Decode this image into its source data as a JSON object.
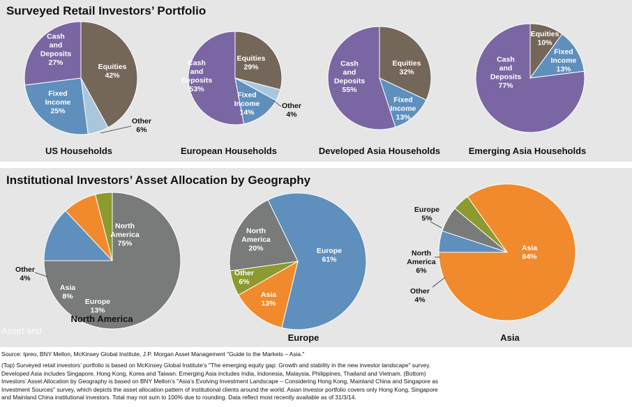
{
  "top_title": "Surveyed Retail Investors’ Portfolio",
  "bottom_title": "Institutional Investors’ Asset Allocation by Geography",
  "watermark": "Asset and",
  "colors": {
    "equities": "#75665a",
    "cash": "#7b66a4",
    "fixed": "#5e8fbd",
    "other_light": "#a9c6dc",
    "other_green": "#8c9a2f",
    "asia": "#f08a2c",
    "europe": "#5e8fbd",
    "north_america": "#797a7a",
    "panel": "#e6e6e6"
  },
  "chart_data": [
    {
      "type": "pie",
      "title": "US Households",
      "slices": [
        {
          "name": "Equities",
          "label": [
            "Equities",
            "42%"
          ],
          "value": 42
        },
        {
          "name": "Other",
          "label": [
            "Other",
            "6%"
          ],
          "value": 6
        },
        {
          "name": "Fixed Income",
          "label": [
            "Fixed",
            "Income",
            "25%"
          ],
          "value": 25
        },
        {
          "name": "Cash and Deposits",
          "label": [
            "Cash",
            "and",
            "Deposits",
            "27%"
          ],
          "value": 27
        }
      ]
    },
    {
      "type": "pie",
      "title": "European Households",
      "slices": [
        {
          "name": "Equities",
          "label": [
            "Equities",
            "29%"
          ],
          "value": 29
        },
        {
          "name": "Other",
          "label": [
            "Other",
            "4%"
          ],
          "value": 4
        },
        {
          "name": "Fixed Income",
          "label": [
            "Fixed",
            "Income",
            "14%"
          ],
          "value": 14
        },
        {
          "name": "Cash and Deposits",
          "label": [
            "Cash",
            "and",
            "Deposits",
            "53%"
          ],
          "value": 53
        }
      ]
    },
    {
      "type": "pie",
      "title": "Developed Asia Households",
      "slices": [
        {
          "name": "Equities",
          "label": [
            "Equities",
            "32%"
          ],
          "value": 32
        },
        {
          "name": "Fixed Income",
          "label": [
            "Fixed",
            "Income",
            "13%"
          ],
          "value": 13
        },
        {
          "name": "Cash and Deposits",
          "label": [
            "Cash",
            "and",
            "Deposits",
            "55%"
          ],
          "value": 55
        }
      ]
    },
    {
      "type": "pie",
      "title": "Emerging Asia Households",
      "slices": [
        {
          "name": "Equities",
          "label": [
            "Equities",
            "10%"
          ],
          "value": 10
        },
        {
          "name": "Fixed Income",
          "label": [
            "Fixed",
            "Income",
            "13%"
          ],
          "value": 13
        },
        {
          "name": "Cash and Deposits",
          "label": [
            "Cash",
            "and",
            "Deposits",
            "77%"
          ],
          "value": 77
        }
      ]
    },
    {
      "type": "pie",
      "title": "North America",
      "slices": [
        {
          "name": "North America",
          "label": [
            "North",
            "America",
            "75%"
          ],
          "value": 75
        },
        {
          "name": "Europe",
          "label": [
            "Europe",
            "13%"
          ],
          "value": 13
        },
        {
          "name": "Asia",
          "label": [
            "Asia",
            "8%"
          ],
          "value": 8
        },
        {
          "name": "Other",
          "label": [
            "Other",
            "4%"
          ],
          "value": 4
        }
      ]
    },
    {
      "type": "pie",
      "title": "Europe",
      "slices": [
        {
          "name": "Europe",
          "label": [
            "Europe",
            "61%"
          ],
          "value": 61
        },
        {
          "name": "Asia",
          "label": [
            "Asia",
            "13%"
          ],
          "value": 13
        },
        {
          "name": "Other",
          "label": [
            "Other",
            "6%"
          ],
          "value": 6
        },
        {
          "name": "North America",
          "label": [
            "North",
            "America",
            "20%"
          ],
          "value": 20
        }
      ]
    },
    {
      "type": "pie",
      "title": "Asia",
      "slices": [
        {
          "name": "Asia",
          "label": [
            "Asia",
            "84%"
          ],
          "value": 84
        },
        {
          "name": "Other",
          "label": [
            "Other",
            "4%"
          ],
          "value": 4
        },
        {
          "name": "North America",
          "label": [
            "North",
            "America",
            "6%"
          ],
          "value": 6
        },
        {
          "name": "Europe",
          "label": [
            "Europe",
            "5%"
          ],
          "value": 5
        }
      ]
    }
  ],
  "notes": {
    "source": "Source: Ipreo, BNY Mellon, McKinsey Global Institute, J.P. Morgan Asset Management \"Guide to the Markets – Asia.\"",
    "lines": [
      "(Top) Surveyed retail investors’ portfolio is based on McKinsey Global Institute’s \"The emerging equity gap: Growth and stability in the new investor landscape\" survey.",
      "Developed Asia includes Singapore,  Hong Kong, Korea and Taiwan.  Emerging Asia includes India, Indonesia, Malaysia, Philippines, Thailand and Vietnam. (Bottom)",
      "Investors’ Asset Allocation by Geography  is based on BNY Mellon’s \"Asia’s Evolving Investment Landscape – Considering Hong Kong, Mainland China and Singapore  as",
      "Investment Sources\" survey, which depicts the asset allocation pattern of institutional clients around the world. Asian investor portfolio covers only Hong Kong, Singapore",
      "and Mainland China institutional investors. Total may not sum to 100% due to rounding.  Data reflect most recently available as of 31/3/14."
    ]
  }
}
